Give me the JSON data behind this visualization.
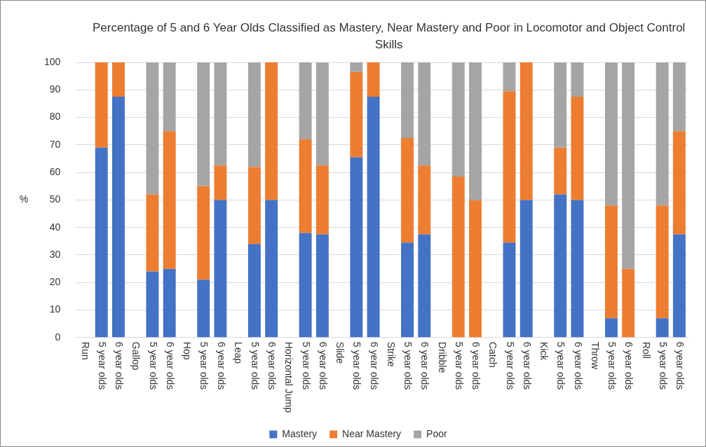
{
  "chart_data": {
    "type": "bar",
    "stacked": true,
    "title": "Percentage of 5 and 6 Year Olds Classified as Mastery, Near Mastery and Poor in Locomotor and Object Control Skills",
    "ylabel": "%",
    "categories": [
      "Run",
      "5 year olds",
      "6 year olds",
      "Gallop",
      "5 year olds",
      "6 year olds",
      "Hop",
      "5 year olds",
      "6 year olds",
      "Leap",
      "5 year olds",
      "6 year olds",
      "Horizontal Jump",
      "5 year olds",
      "6 year olds",
      "Slide",
      "5 year olds",
      "6 year olds",
      "Strike",
      "5 year olds",
      "6 year olds",
      "Dribble",
      "5 year olds",
      "6 year olds",
      "Catch",
      "5 year olds",
      "6 year olds",
      "Kick",
      "5 year olds",
      "6 year olds",
      "Throw",
      "5 year olds",
      "6 year olds",
      "Roll",
      "5 year olds",
      "6 year olds"
    ],
    "series": [
      {
        "name": "Mastery",
        "color": "#4472c4",
        "values": [
          null,
          69,
          87.5,
          null,
          24,
          25,
          null,
          21,
          50,
          null,
          34,
          50,
          null,
          38,
          37.5,
          null,
          65.5,
          87.5,
          null,
          34.5,
          37.5,
          null,
          0,
          0,
          null,
          34.5,
          50,
          null,
          52,
          50,
          null,
          7,
          0,
          null,
          7,
          37.5
        ]
      },
      {
        "name": "Near Mastery",
        "color": "#ed7d31",
        "values": [
          null,
          31,
          12.5,
          null,
          28,
          50,
          null,
          34,
          12.5,
          null,
          28,
          50,
          null,
          34,
          25,
          null,
          31,
          12.5,
          null,
          38,
          25,
          null,
          58.5,
          50,
          null,
          55,
          50,
          null,
          17,
          37.5,
          null,
          41,
          25,
          null,
          41,
          37.5
        ]
      },
      {
        "name": "Poor",
        "color": "#a5a5a5",
        "values": [
          null,
          0,
          0,
          null,
          48,
          25,
          null,
          45,
          37.5,
          null,
          38,
          0,
          null,
          28,
          37.5,
          null,
          3.5,
          0,
          null,
          27.5,
          37.5,
          null,
          41.5,
          50,
          null,
          10.5,
          0,
          null,
          31,
          12.5,
          null,
          52,
          75,
          null,
          52,
          25
        ]
      }
    ],
    "ylim": [
      0,
      100
    ],
    "yticks": [
      0,
      10,
      20,
      30,
      40,
      50,
      60,
      70,
      80,
      90,
      100
    ],
    "grid": "y",
    "legend": "bottom"
  }
}
